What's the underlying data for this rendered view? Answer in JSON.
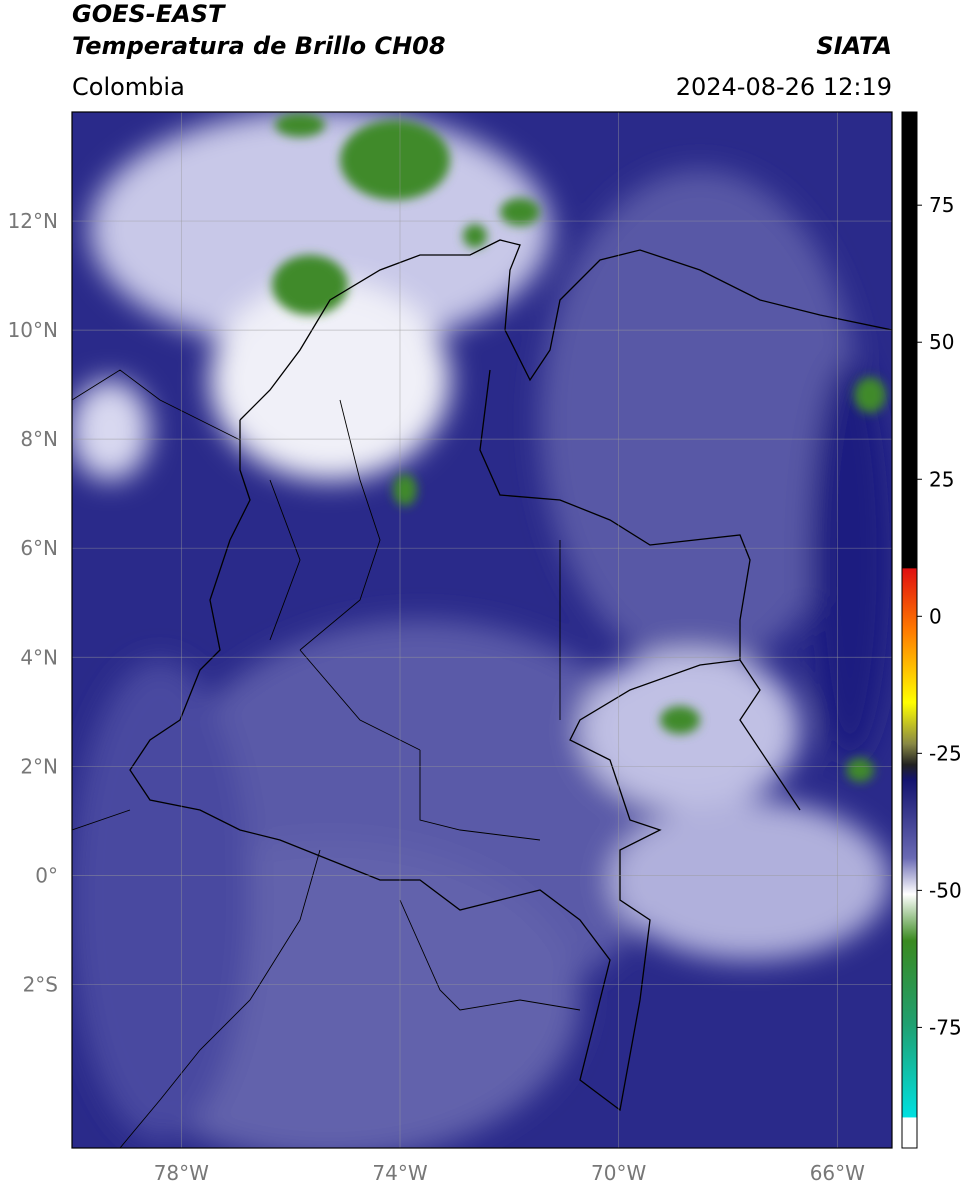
{
  "header": {
    "title": "GOES-EAST",
    "subtitle": "Temperatura de Brillo CH08",
    "source": "SIATA",
    "region": "Colombia",
    "datetime": "2024-08-26 12:19"
  },
  "map": {
    "lonlim": [
      -80,
      -65
    ],
    "latlim": [
      -5,
      14
    ],
    "lat_ticks": [
      {
        "value": 12,
        "label": "12°N"
      },
      {
        "value": 10,
        "label": "10°N"
      },
      {
        "value": 8,
        "label": "8°N"
      },
      {
        "value": 6,
        "label": "6°N"
      },
      {
        "value": 4,
        "label": "4°N"
      },
      {
        "value": 2,
        "label": "2°N"
      },
      {
        "value": 0,
        "label": "0°"
      },
      {
        "value": -2,
        "label": "2°S"
      }
    ],
    "lon_ticks": [
      {
        "value": -78,
        "label": "78°W"
      },
      {
        "value": -74,
        "label": "74°W"
      },
      {
        "value": -70,
        "label": "70°W"
      },
      {
        "value": -66,
        "label": "66°W"
      }
    ]
  },
  "colorbar": {
    "lim": [
      -97,
      92
    ],
    "ticks": [
      75,
      50,
      25,
      0,
      -25,
      -50,
      -75
    ]
  }
}
